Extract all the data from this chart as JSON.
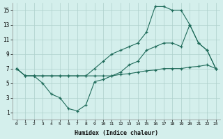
{
  "xlabel": "Humidex (Indice chaleur)",
  "bg_color": "#d4efec",
  "grid_color": "#aed0cb",
  "line_color": "#1f6b5a",
  "xlim": [
    -0.5,
    23.5
  ],
  "ylim": [
    0,
    16
  ],
  "xticks": [
    0,
    1,
    2,
    3,
    4,
    5,
    6,
    7,
    8,
    9,
    10,
    11,
    12,
    13,
    14,
    15,
    16,
    17,
    18,
    19,
    20,
    21,
    22,
    23
  ],
  "yticks": [
    1,
    3,
    5,
    7,
    9,
    11,
    13,
    15
  ],
  "line1_x": [
    0,
    1,
    2,
    3,
    4,
    5,
    6,
    7,
    8,
    9,
    10,
    11,
    12,
    13,
    14,
    15,
    16,
    17,
    18,
    19,
    20,
    21,
    22,
    23
  ],
  "line1_y": [
    7,
    6,
    6,
    6,
    6,
    6,
    6,
    6,
    6,
    7,
    8,
    9,
    9.5,
    10,
    10.5,
    12,
    15.5,
    15.5,
    15,
    15,
    13,
    10.5,
    9.5,
    7
  ],
  "line2_x": [
    0,
    1,
    2,
    3,
    4,
    5,
    6,
    7,
    8,
    9,
    10,
    11,
    12,
    13,
    14,
    15,
    16,
    17,
    18,
    19,
    20,
    21,
    22,
    23
  ],
  "line2_y": [
    7,
    6,
    6,
    5,
    3.5,
    3,
    1.5,
    1.2,
    2,
    5.2,
    5.5,
    6,
    6.5,
    7.5,
    8,
    9.5,
    10,
    10.5,
    10.5,
    10,
    13,
    10.5,
    9.5,
    7
  ],
  "line3_x": [
    0,
    1,
    2,
    3,
    4,
    5,
    6,
    7,
    8,
    9,
    10,
    11,
    12,
    13,
    14,
    15,
    16,
    17,
    18,
    19,
    20,
    21,
    22,
    23
  ],
  "line3_y": [
    7,
    6,
    6,
    6,
    6,
    6,
    6,
    6,
    6,
    6,
    6,
    6,
    6.2,
    6.3,
    6.5,
    6.7,
    6.8,
    7,
    7,
    7,
    7.2,
    7.3,
    7.5,
    7
  ]
}
